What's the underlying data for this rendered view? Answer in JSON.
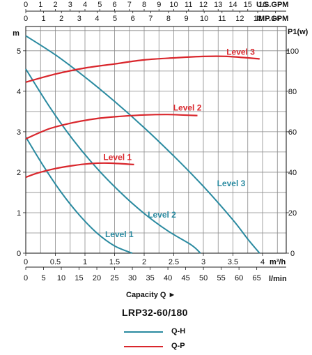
{
  "chart_data": {
    "type": "line",
    "xlabel": "Capacity Q",
    "model": "LRP32-60/180",
    "top_axes": [
      {
        "unit": "U.S.GPM",
        "ticks": [
          "0",
          "1",
          "2",
          "3",
          "4",
          "5",
          "6",
          "7",
          "8",
          "9",
          "10",
          "11",
          "12",
          "13",
          "14",
          "15",
          "16"
        ],
        "range": [
          0,
          17.6
        ]
      },
      {
        "unit": "IMP.GPM",
        "ticks": [
          "0",
          "1",
          "2",
          "3",
          "4",
          "5",
          "6",
          "7",
          "8",
          "9",
          "10",
          "11",
          "12",
          "13",
          "14"
        ],
        "range": [
          0,
          14.6
        ]
      }
    ],
    "bottom_axes": [
      {
        "unit": "m³/h",
        "ticks": [
          "0",
          "0.5",
          "1",
          "1.5",
          "2",
          "2.5",
          "3",
          "3.5",
          "4"
        ],
        "range": [
          0,
          4.4
        ]
      },
      {
        "unit": "l/min",
        "ticks": [
          "0",
          "5",
          "10",
          "15",
          "20",
          "25",
          "30",
          "35",
          "40",
          "45",
          "50",
          "55",
          "60",
          "65"
        ],
        "range": [
          0,
          73.3
        ]
      }
    ],
    "y_left": {
      "label": "m",
      "ticks": [
        "0",
        "1",
        "2",
        "3",
        "4",
        "5"
      ],
      "range": [
        0,
        5.6
      ]
    },
    "y_right": {
      "label": "P1(w)",
      "ticks": [
        "0",
        "20",
        "40",
        "60",
        "80",
        "100"
      ],
      "range": [
        0,
        112
      ]
    },
    "grid": true,
    "qh_series": [
      {
        "name": "Level 1",
        "label_at": [
          1.58,
          0.4
        ],
        "points": [
          [
            0,
            2.87
          ],
          [
            0.3,
            2.15
          ],
          [
            0.6,
            1.5
          ],
          [
            0.9,
            0.95
          ],
          [
            1.2,
            0.5
          ],
          [
            1.5,
            0.18
          ],
          [
            1.8,
            0.0
          ]
        ]
      },
      {
        "name": "Level 2",
        "label_at": [
          2.3,
          0.88
        ],
        "points": [
          [
            0,
            4.55
          ],
          [
            0.4,
            3.62
          ],
          [
            0.8,
            2.8
          ],
          [
            1.2,
            2.1
          ],
          [
            1.6,
            1.5
          ],
          [
            2.0,
            0.98
          ],
          [
            2.4,
            0.55
          ],
          [
            2.8,
            0.2
          ],
          [
            2.95,
            0.0
          ]
        ]
      },
      {
        "name": "Level 3",
        "label_at": [
          3.47,
          1.65
        ],
        "points": [
          [
            0,
            5.37
          ],
          [
            0.5,
            4.9
          ],
          [
            1.0,
            4.35
          ],
          [
            1.5,
            3.75
          ],
          [
            2.0,
            3.1
          ],
          [
            2.5,
            2.4
          ],
          [
            3.0,
            1.65
          ],
          [
            3.5,
            0.82
          ],
          [
            3.75,
            0.35
          ],
          [
            3.95,
            0.0
          ]
        ]
      }
    ],
    "qp_series": [
      {
        "name": "Level 1",
        "label_at": [
          1.55,
          46
        ],
        "points": [
          [
            0,
            37.5
          ],
          [
            0.2,
            39.6
          ],
          [
            0.5,
            41.8
          ],
          [
            0.8,
            43.3
          ],
          [
            1.1,
            44.3
          ],
          [
            1.4,
            44.5
          ],
          [
            1.83,
            43.8
          ]
        ]
      },
      {
        "name": "Level 2",
        "label_at": [
          2.73,
          70.5
        ],
        "points": [
          [
            0,
            56.5
          ],
          [
            0.4,
            61.5
          ],
          [
            0.8,
            64.5
          ],
          [
            1.2,
            66.5
          ],
          [
            1.6,
            67.6
          ],
          [
            2.0,
            68.3
          ],
          [
            2.4,
            68.5
          ],
          [
            2.9,
            68.0
          ]
        ]
      },
      {
        "name": "Level 3",
        "label_at": [
          3.63,
          98
        ],
        "points": [
          [
            0,
            84.5
          ],
          [
            0.5,
            88.5
          ],
          [
            1.0,
            91.5
          ],
          [
            1.5,
            93.5
          ],
          [
            2.0,
            95.5
          ],
          [
            2.5,
            96.5
          ],
          [
            3.0,
            97.2
          ],
          [
            3.4,
            97.2
          ],
          [
            3.95,
            96.0
          ]
        ]
      }
    ],
    "colors": {
      "qh": "#2a8aa0",
      "qp": "#d9262c",
      "grid": "#8a8a8a"
    }
  },
  "legend": {
    "qh_label": "Q-H",
    "qp_label": "Q-P"
  }
}
